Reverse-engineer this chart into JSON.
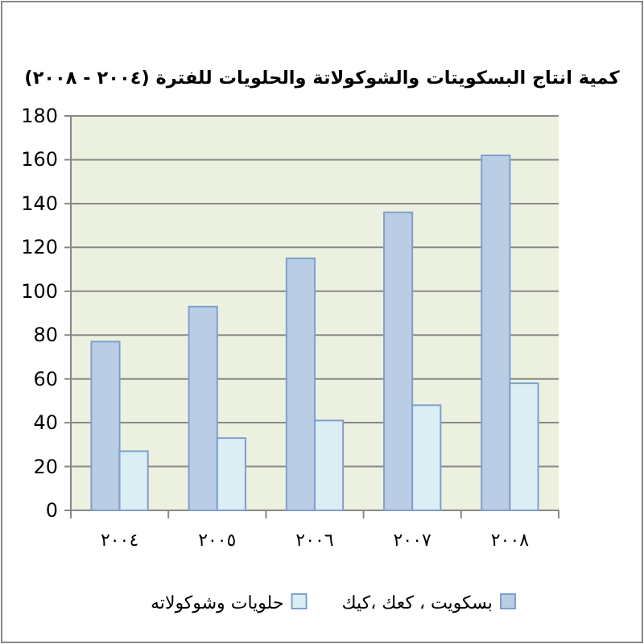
{
  "chart_data": {
    "type": "bar",
    "title": "كمية انتاج البسكويتات والشوكولاتة والحلويات للفترة (٢٠٠٤ - ٢٠٠٨)",
    "categories": [
      "٢٠٠٤",
      "٢٠٠٥",
      "٢٠٠٦",
      "٢٠٠٧",
      "٢٠٠٨"
    ],
    "series": [
      {
        "name": "بسكويت ، كعك ،كيك",
        "color": "#b9cde5",
        "values": [
          77,
          93,
          115,
          136,
          162
        ]
      },
      {
        "name": "حلويات وشوكولاته",
        "color": "#dbeef4",
        "values": [
          27,
          33,
          41,
          48,
          58
        ]
      }
    ],
    "ylim": [
      0,
      180
    ],
    "yticks": [
      0,
      20,
      40,
      60,
      80,
      100,
      120,
      140,
      160,
      180
    ],
    "grid": "y",
    "legend": "bottom"
  }
}
